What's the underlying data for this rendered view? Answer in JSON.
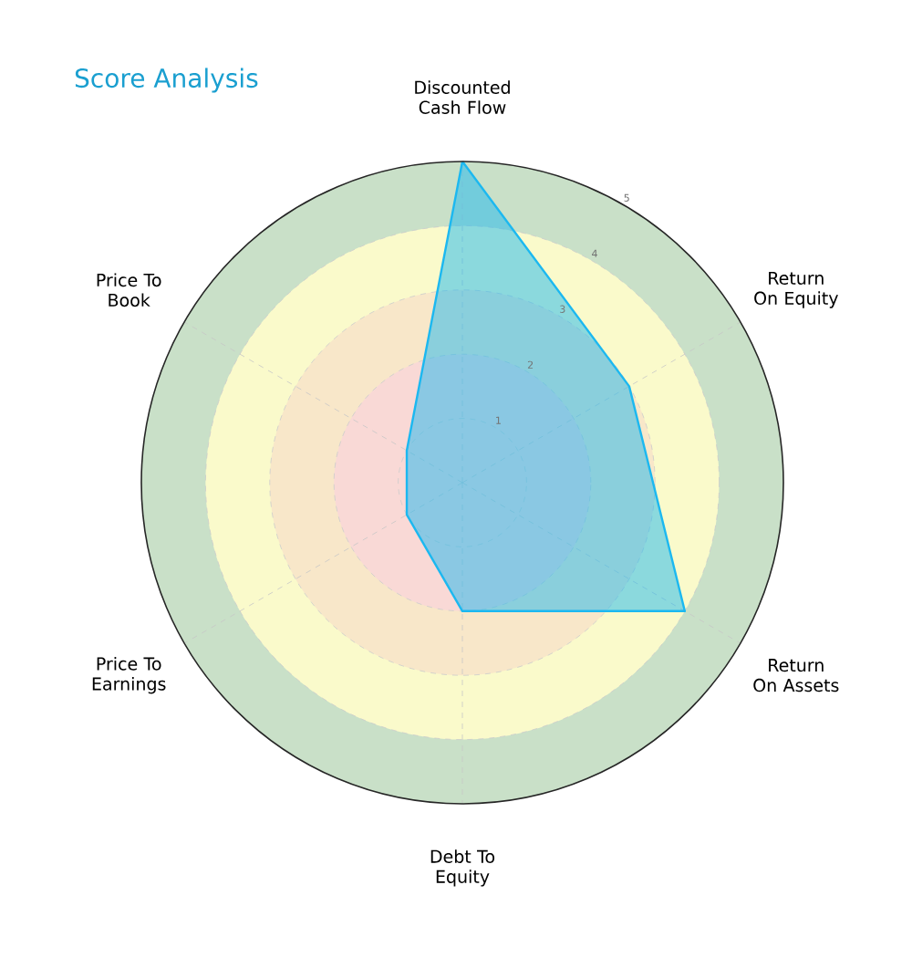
{
  "chart_data": {
    "type": "radar",
    "title": "Score Analysis",
    "categories": [
      "Discounted Cash Flow",
      "Return On Equity",
      "Return On Assets",
      "Debt To Equity",
      "Price To Earnings",
      "Price To Book"
    ],
    "series": [
      {
        "color": "#1cb8f0",
        "values": [
          5,
          3,
          4,
          2,
          1,
          1
        ]
      }
    ],
    "ylim": [
      0,
      5
    ],
    "yticks": [
      1,
      2,
      3,
      4,
      5
    ],
    "grid": true
  }
}
